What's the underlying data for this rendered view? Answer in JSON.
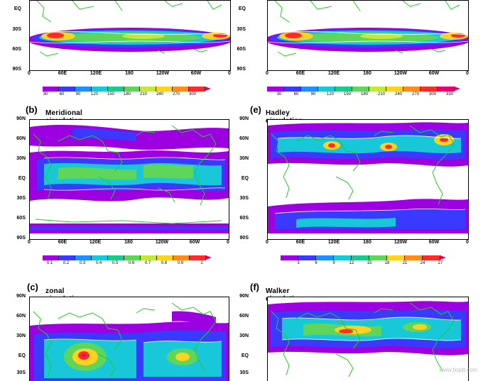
{
  "panels": {
    "top_left": {
      "letter": "",
      "title": ""
    },
    "top_right": {
      "letter": "",
      "title": ""
    },
    "b": {
      "letter": "(b)",
      "title": "Meridional circulation"
    },
    "e": {
      "letter": "(e)",
      "title": "Hadley circulation"
    },
    "c": {
      "letter": "(c)",
      "title": "zonal circulation"
    },
    "f": {
      "letter": "(f)",
      "title": "Walker circulation"
    }
  },
  "lat_labels_full": [
    "90N",
    "60N",
    "30N",
    "EQ",
    "30S",
    "60S",
    "90S"
  ],
  "lat_labels_top": [
    "EQ",
    "30S",
    "60S",
    "90S"
  ],
  "lat_labels_bottom": [
    "90N",
    "60N",
    "30N",
    "EQ",
    "30S"
  ],
  "lon_labels": [
    "0",
    "60E",
    "120E",
    "180",
    "120W",
    "60W",
    "0"
  ],
  "colorbars": {
    "top_left": [
      "30",
      "60",
      "90",
      "120",
      "150",
      "180",
      "210",
      "240",
      "270",
      "300"
    ],
    "top_right": [
      "30",
      "60",
      "90",
      "120",
      "150",
      "180",
      "210",
      "240",
      "270",
      "300",
      "330"
    ],
    "b": [
      "0.1",
      "0.2",
      "0.3",
      "0.4",
      "0.5",
      "0.6",
      "0.7",
      "0.8",
      "0.9",
      "1"
    ],
    "e": [
      "3",
      "6",
      "9",
      "12",
      "15",
      "18",
      "21",
      "24",
      "27"
    ]
  },
  "colors": {
    "land": "#22cc22",
    "contour": "#ffffff",
    "palette": [
      "#9d00e0",
      "#3a3aff",
      "#1f8fff",
      "#18c8d8",
      "#1ec88a",
      "#5fd65a",
      "#c4e83a",
      "#ffd21f",
      "#ff8c1a",
      "#ff2a2a",
      "#e8006e"
    ]
  },
  "watermark": "www.fxqdt.com"
}
